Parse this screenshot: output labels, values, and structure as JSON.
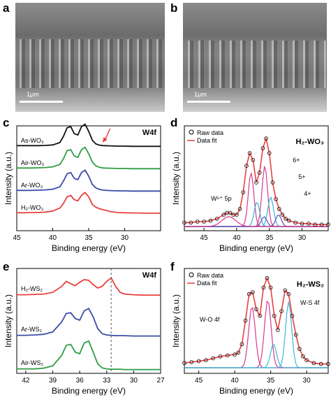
{
  "panels": {
    "a": {
      "letter": "a",
      "scale_label": "1μm"
    },
    "b": {
      "letter": "b",
      "scale_label": "1μm"
    },
    "c": {
      "letter": "c",
      "tag": "W4f",
      "xlabel": "Binding energy (eV)",
      "ylabel": "Intensity (a.u.)"
    },
    "d": {
      "letter": "d",
      "xlabel": "Binding energy (eV)",
      "ylabel": "Intensity (a.u.)",
      "legend": [
        "Raw data",
        "Data fit"
      ],
      "annotations": [
        "6+",
        "5+",
        "4+",
        "W⁶⁺ 5p"
      ]
    },
    "e": {
      "letter": "e",
      "tag": "W4f",
      "xlabel": "Binding energy (eV)",
      "ylabel": "Intensity (a.u.)"
    },
    "f": {
      "letter": "f",
      "xlabel": "Binding energy (eV)",
      "ylabel": "Intensity (a.u.)",
      "legend": [
        "Raw data",
        "Data fit"
      ],
      "annotations": [
        "W-O 4f",
        "W-S 4f"
      ]
    }
  },
  "colors": {
    "red": "#e8403f",
    "blue": "#3b4ba8",
    "green": "#2e9e45",
    "black": "#111111",
    "magenta": "#d63a8c",
    "cyan": "#3bb7d6",
    "purple": "#6a4fb3",
    "sem_bg": "#4a4a4a"
  },
  "chart_data": [
    {
      "id": "c",
      "type": "line",
      "xlim": [
        45,
        25
      ],
      "x_ticks": [
        45,
        40,
        35,
        30
      ],
      "x": [
        45,
        44,
        43,
        42,
        41,
        40,
        39,
        38.5,
        38,
        37.5,
        37,
        36.5,
        36,
        35.5,
        35,
        34.5,
        34,
        33.5,
        33,
        32,
        31,
        30,
        29,
        28,
        27,
        26,
        25
      ],
      "series": [
        {
          "name": "H₂-WO₃",
          "color": "red",
          "label": "H₂-WO₃",
          "values": [
            0.05,
            0.05,
            0.06,
            0.06,
            0.08,
            0.12,
            0.25,
            0.45,
            0.72,
            0.78,
            0.6,
            0.55,
            0.78,
            0.9,
            0.72,
            0.4,
            0.28,
            0.22,
            0.18,
            0.1,
            0.06,
            0.05,
            0.04,
            0.04,
            0.03,
            0.03,
            0.03
          ]
        },
        {
          "name": "Ar-WO₃",
          "color": "blue",
          "label": "Ar-WO₃",
          "values": [
            0.05,
            0.05,
            0.05,
            0.06,
            0.07,
            0.1,
            0.2,
            0.45,
            0.75,
            0.8,
            0.55,
            0.5,
            0.8,
            0.9,
            0.65,
            0.3,
            0.15,
            0.09,
            0.06,
            0.04,
            0.03,
            0.03,
            0.02,
            0.02,
            0.02,
            0.02,
            0.02
          ]
        },
        {
          "name": "Air-WO₃",
          "color": "green",
          "label": "Air-WO₃",
          "values": [
            0.05,
            0.05,
            0.05,
            0.06,
            0.07,
            0.1,
            0.2,
            0.45,
            0.78,
            0.82,
            0.55,
            0.5,
            0.82,
            0.92,
            0.65,
            0.3,
            0.14,
            0.08,
            0.05,
            0.04,
            0.03,
            0.03,
            0.02,
            0.02,
            0.02,
            0.02,
            0.02
          ]
        },
        {
          "name": "As-WO₃",
          "color": "black",
          "label": "As-WO₃",
          "values": [
            0.05,
            0.05,
            0.05,
            0.05,
            0.06,
            0.08,
            0.18,
            0.45,
            0.8,
            0.85,
            0.55,
            0.5,
            0.85,
            0.95,
            0.65,
            0.28,
            0.12,
            0.07,
            0.05,
            0.04,
            0.03,
            0.03,
            0.02,
            0.02,
            0.02,
            0.02,
            0.02
          ]
        }
      ]
    },
    {
      "id": "d",
      "type": "scatter",
      "xlim": [
        48,
        26
      ],
      "x_ticks": [
        45,
        40,
        35,
        30
      ],
      "title": "H₂-WO₃",
      "x": [
        48,
        47,
        46,
        45,
        44,
        43,
        42,
        41.5,
        41,
        40.5,
        40,
        39.5,
        39,
        38.5,
        38,
        37.5,
        37,
        36.5,
        36,
        35.5,
        35,
        34.5,
        34,
        33.5,
        33,
        32.5,
        32,
        31,
        30,
        29,
        28,
        27,
        26
      ],
      "raw": [
        0.04,
        0.04,
        0.05,
        0.05,
        0.06,
        0.08,
        0.12,
        0.14,
        0.14,
        0.12,
        0.12,
        0.18,
        0.35,
        0.62,
        0.75,
        0.68,
        0.45,
        0.55,
        0.8,
        0.9,
        0.75,
        0.45,
        0.28,
        0.18,
        0.12,
        0.08,
        0.06,
        0.04,
        0.03,
        0.03,
        0.02,
        0.02,
        0.02
      ],
      "fit": [
        0.04,
        0.04,
        0.05,
        0.05,
        0.06,
        0.08,
        0.12,
        0.14,
        0.14,
        0.12,
        0.12,
        0.18,
        0.35,
        0.62,
        0.75,
        0.68,
        0.45,
        0.55,
        0.8,
        0.9,
        0.75,
        0.45,
        0.28,
        0.18,
        0.12,
        0.08,
        0.06,
        0.04,
        0.03,
        0.03,
        0.02,
        0.02,
        0.02
      ]
    },
    {
      "id": "e",
      "type": "line",
      "xlim": [
        43,
        27
      ],
      "x_ticks": [
        42,
        39,
        36,
        33,
        30,
        27
      ],
      "x": [
        43,
        42,
        41,
        40,
        39,
        38,
        37.5,
        37,
        36.5,
        36,
        35.5,
        35,
        34.5,
        34,
        33.5,
        33,
        32.5,
        32,
        31.5,
        31,
        30,
        29,
        28,
        27
      ],
      "series": [
        {
          "name": "H₂-WS₂",
          "color": "red",
          "label": "H₂-WS₂",
          "values": [
            0.05,
            0.05,
            0.06,
            0.07,
            0.12,
            0.3,
            0.45,
            0.38,
            0.32,
            0.42,
            0.5,
            0.48,
            0.35,
            0.25,
            0.3,
            0.45,
            0.55,
            0.3,
            0.12,
            0.07,
            0.05,
            0.04,
            0.04,
            0.04
          ]
        },
        {
          "name": "Ar-WS₂",
          "color": "blue",
          "label": "Ar-WS₂",
          "values": [
            0.05,
            0.05,
            0.06,
            0.08,
            0.15,
            0.45,
            0.7,
            0.72,
            0.55,
            0.5,
            0.78,
            0.85,
            0.6,
            0.25,
            0.1,
            0.06,
            0.05,
            0.04,
            0.04,
            0.04,
            0.03,
            0.03,
            0.03,
            0.03
          ]
        },
        {
          "name": "Air-WS₂",
          "color": "green",
          "label": "Air-WS₂",
          "values": [
            0.05,
            0.05,
            0.05,
            0.07,
            0.14,
            0.45,
            0.75,
            0.78,
            0.55,
            0.5,
            0.82,
            0.88,
            0.55,
            0.2,
            0.08,
            0.05,
            0.04,
            0.04,
            0.04,
            0.03,
            0.03,
            0.03,
            0.03,
            0.03
          ]
        }
      ],
      "vline": 32.5
    },
    {
      "id": "f",
      "type": "scatter",
      "xlim": [
        47,
        27
      ],
      "x_ticks": [
        45,
        40,
        35,
        30
      ],
      "title": "H₂-WS₂",
      "x": [
        47,
        46,
        45,
        44,
        43,
        42,
        41,
        40,
        39.5,
        39,
        38.5,
        38,
        37.5,
        37,
        36.5,
        36,
        35.5,
        35,
        34.5,
        34,
        33.5,
        33,
        32.5,
        32,
        31.5,
        31,
        30.5,
        30,
        29,
        28,
        27
      ],
      "raw": [
        0.05,
        0.06,
        0.07,
        0.08,
        0.1,
        0.12,
        0.13,
        0.14,
        0.16,
        0.25,
        0.5,
        0.78,
        0.8,
        0.62,
        0.55,
        0.85,
        0.95,
        0.85,
        0.55,
        0.4,
        0.6,
        0.82,
        0.78,
        0.55,
        0.35,
        0.2,
        0.12,
        0.08,
        0.05,
        0.04,
        0.04
      ],
      "fit": [
        0.05,
        0.06,
        0.07,
        0.08,
        0.1,
        0.12,
        0.13,
        0.14,
        0.16,
        0.25,
        0.5,
        0.78,
        0.8,
        0.62,
        0.55,
        0.85,
        0.95,
        0.85,
        0.55,
        0.4,
        0.6,
        0.82,
        0.78,
        0.55,
        0.35,
        0.2,
        0.12,
        0.08,
        0.05,
        0.04,
        0.04
      ]
    }
  ]
}
